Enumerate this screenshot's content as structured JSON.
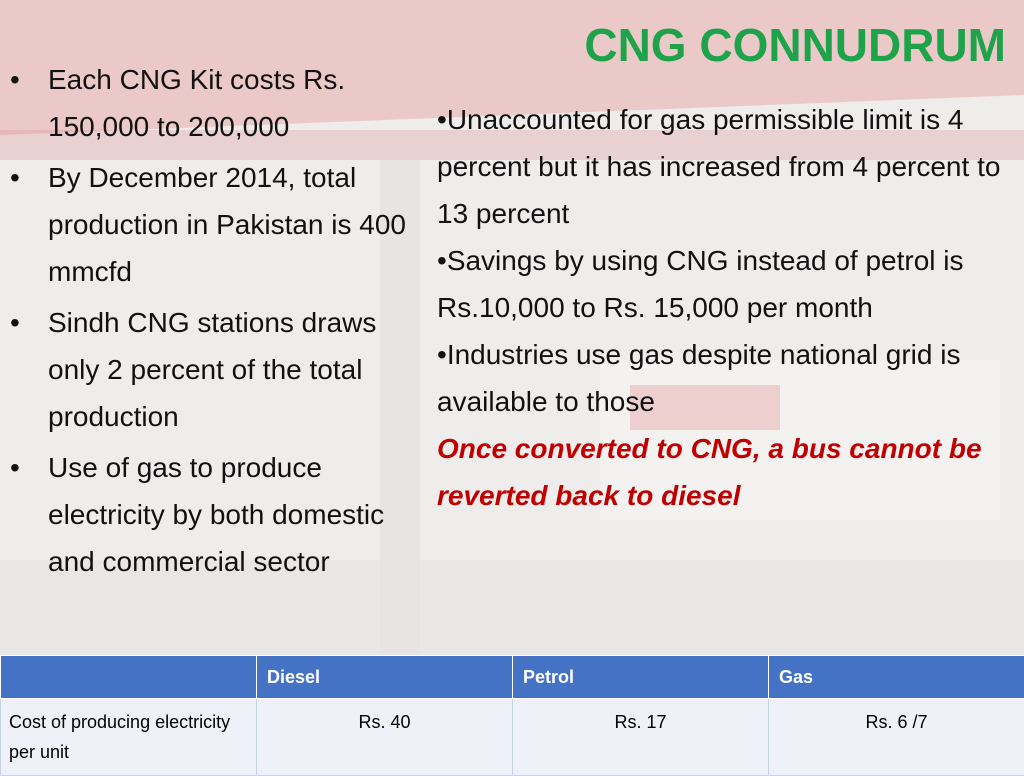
{
  "title": "CNG CONNUDRUM",
  "left_bullets": [
    "Each CNG Kit costs Rs. 150,000 to 200,000",
    "By December 2014, total production in Pakistan is 400 mmcfd",
    "Sindh CNG stations draws only 2 percent of the total production",
    "Use of gas to produce electricity by both domestic and commercial sector"
  ],
  "right_points": [
    "Unaccounted for gas permissible limit is 4 percent but it has increased from 4 percent to 13 percent",
    "Savings by using CNG instead of petrol is Rs.10,000 to Rs. 15,000 per month",
    "Industries use gas despite national grid is available to those"
  ],
  "emphasis": "Once converted to CNG, a bus cannot be reverted back to diesel",
  "table": {
    "headers": [
      "Diesel",
      "Petrol",
      "Gas"
    ],
    "rows": [
      [
        "Cost of producing electricity per unit",
        "Rs. 40",
        "Rs. 17",
        "Rs. 6 /7"
      ]
    ]
  }
}
